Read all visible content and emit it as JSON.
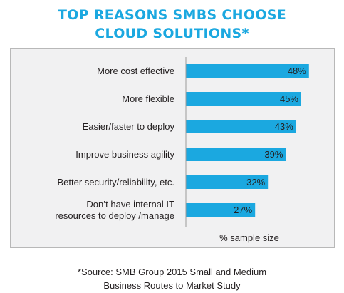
{
  "title_line1": "TOP REASONS SMBS CHOOSE",
  "title_line2": "CLOUD SOLUTIONS*",
  "source_line1": "*Source: SMB Group 2015 Small and Medium",
  "source_line2": "Business Routes to Market Study",
  "colors": {
    "title": "#1ba8e0",
    "bar": "#1ba8e0",
    "panel": "#f1f1f2"
  },
  "chart_data": {
    "type": "bar",
    "orientation": "horizontal",
    "title": "TOP REASONS SMBS CHOOSE CLOUD SOLUTIONS*",
    "xlabel": "% sample size",
    "ylabel": "",
    "xlim": [
      0,
      50
    ],
    "grid": false,
    "categories": [
      [
        "More cost effective"
      ],
      [
        "More flexible"
      ],
      [
        "Easier/faster to deploy"
      ],
      [
        "Improve business agility"
      ],
      [
        "Better security/reliability, etc."
      ],
      [
        "Don’t have internal IT",
        "resources to deploy /manage"
      ]
    ],
    "values": [
      48,
      45,
      43,
      39,
      32,
      27
    ],
    "value_labels": [
      "48%",
      "45%",
      "43%",
      "39%",
      "32%",
      "27%"
    ]
  }
}
